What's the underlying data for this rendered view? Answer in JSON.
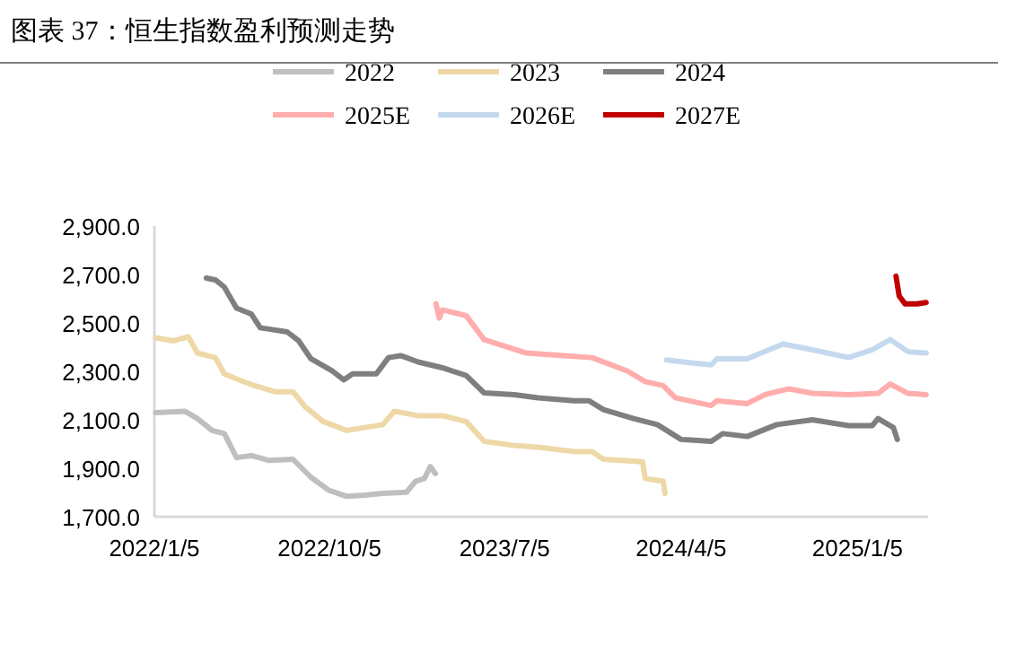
{
  "chart_data": {
    "type": "line",
    "title": "图表 37：恒生指数盈利预测走势",
    "xlim": [
      "2022-01-05",
      "2025-04-25"
    ],
    "ylim": [
      1700,
      2900
    ],
    "xticks": [
      {
        "value": "2022-01-05",
        "label": "2022/1/5"
      },
      {
        "value": "2022-10-05",
        "label": "2022/10/5"
      },
      {
        "value": "2023-07-05",
        "label": "2023/7/5"
      },
      {
        "value": "2024-04-05",
        "label": "2024/4/5"
      },
      {
        "value": "2025-01-05",
        "label": "2025/1/5"
      }
    ],
    "yticks": [
      {
        "value": 1700,
        "label": "1,700.0"
      },
      {
        "value": 1900,
        "label": "1,900.0"
      },
      {
        "value": 2100,
        "label": "2,100.0"
      },
      {
        "value": 2300,
        "label": "2,300.0"
      },
      {
        "value": 2500,
        "label": "2,500.0"
      },
      {
        "value": 2700,
        "label": "2,700.0"
      },
      {
        "value": 2900,
        "label": "2,900.0"
      }
    ],
    "grid": false,
    "legend": "top",
    "series": [
      {
        "name": "2022",
        "color": "#bfbfbf",
        "x": [
          "2022-01-07",
          "2022-02-22",
          "2022-03-13",
          "2022-04-05",
          "2022-04-24",
          "2022-05-13",
          "2022-06-05",
          "2022-07-03",
          "2022-08-09",
          "2022-09-06",
          "2022-10-04",
          "2022-11-01",
          "2022-11-29",
          "2022-12-27",
          "2023-02-02",
          "2023-02-16",
          "2023-03-02",
          "2023-03-11",
          "2023-03-19"
        ],
        "values": [
          2130,
          2135,
          2105,
          2056,
          2043,
          1944,
          1952,
          1932,
          1937,
          1863,
          1809,
          1784,
          1789,
          1796,
          1801,
          1846,
          1858,
          1907,
          1878
        ]
      },
      {
        "name": "2023",
        "color": "#eed8a7",
        "x": [
          "2022-01-07",
          "2022-02-04",
          "2022-02-27",
          "2022-03-13",
          "2022-04-10",
          "2022-04-24",
          "2022-05-17",
          "2022-06-10",
          "2022-07-12",
          "2022-08-09",
          "2022-08-28",
          "2022-09-25",
          "2022-11-01",
          "2022-11-29",
          "2022-12-27",
          "2023-01-14",
          "2023-02-20",
          "2023-03-30",
          "2023-05-06",
          "2023-06-03",
          "2023-07-20",
          "2023-08-26",
          "2023-10-21",
          "2023-11-18",
          "2023-12-06",
          "2024-02-05",
          "2024-02-09",
          "2024-03-08",
          "2024-03-11"
        ],
        "values": [
          2439,
          2426,
          2443,
          2376,
          2357,
          2290,
          2265,
          2241,
          2216,
          2216,
          2154,
          2093,
          2056,
          2068,
          2080,
          2135,
          2117,
          2117,
          2093,
          2011,
          1994,
          1987,
          1969,
          1969,
          1937,
          1927,
          1858,
          1846,
          1796
        ]
      },
      {
        "name": "2024",
        "color": "#7f7f7f",
        "x": [
          "2022-03-27",
          "2022-04-10",
          "2022-04-24",
          "2022-05-13",
          "2022-06-05",
          "2022-06-19",
          "2022-07-31",
          "2022-08-18",
          "2022-09-06",
          "2022-10-09",
          "2022-10-27",
          "2022-11-10",
          "2022-12-17",
          "2023-01-05",
          "2023-01-24",
          "2023-02-20",
          "2023-03-30",
          "2023-05-06",
          "2023-06-03",
          "2023-07-20",
          "2023-08-26",
          "2023-10-21",
          "2023-11-13",
          "2023-12-06",
          "2024-01-22",
          "2024-02-28",
          "2024-04-05",
          "2024-05-22",
          "2024-06-09",
          "2024-07-17",
          "2024-09-01",
          "2024-10-27",
          "2024-12-22",
          "2025-01-28",
          "2025-02-06",
          "2025-03-02",
          "2025-03-08"
        ],
        "values": [
          2685,
          2678,
          2648,
          2561,
          2537,
          2480,
          2463,
          2426,
          2352,
          2302,
          2265,
          2290,
          2290,
          2357,
          2365,
          2339,
          2315,
          2283,
          2211,
          2204,
          2191,
          2179,
          2179,
          2142,
          2105,
          2080,
          2019,
          2011,
          2043,
          2031,
          2080,
          2100,
          2076,
          2076,
          2105,
          2068,
          2019
        ]
      },
      {
        "name": "2025E",
        "color": "#ffadad",
        "x": [
          "2023-03-20",
          "2023-03-25",
          "2023-03-30",
          "2023-05-06",
          "2023-06-03",
          "2023-08-07",
          "2023-10-11",
          "2023-11-18",
          "2024-01-12",
          "2024-02-09",
          "2024-03-08",
          "2024-03-27",
          "2024-05-22",
          "2024-05-31",
          "2024-07-17",
          "2024-08-14",
          "2024-09-20",
          "2024-10-27",
          "2024-12-22",
          "2025-02-06",
          "2025-02-25",
          "2025-03-25",
          "2025-04-22"
        ],
        "values": [
          2579,
          2520,
          2554,
          2530,
          2431,
          2376,
          2364,
          2357,
          2302,
          2258,
          2241,
          2191,
          2159,
          2179,
          2167,
          2204,
          2228,
          2209,
          2204,
          2209,
          2248,
          2209,
          2204
        ]
      },
      {
        "name": "2026E",
        "color": "#c5d9ee",
        "x": [
          "2024-03-13",
          "2024-04-14",
          "2024-05-22",
          "2024-05-31",
          "2024-07-17",
          "2024-09-11",
          "2024-10-27",
          "2024-12-22",
          "2025-01-28",
          "2025-02-25",
          "2025-03-25",
          "2025-04-22"
        ],
        "values": [
          2347,
          2337,
          2327,
          2352,
          2352,
          2413,
          2389,
          2357,
          2389,
          2431,
          2381,
          2376
        ]
      },
      {
        "name": "2027E",
        "color": "#c00000",
        "x": [
          "2025-03-06",
          "2025-03-11",
          "2025-03-20",
          "2025-04-08",
          "2025-04-22"
        ],
        "values": [
          2693,
          2611,
          2579,
          2579,
          2584
        ]
      }
    ]
  }
}
